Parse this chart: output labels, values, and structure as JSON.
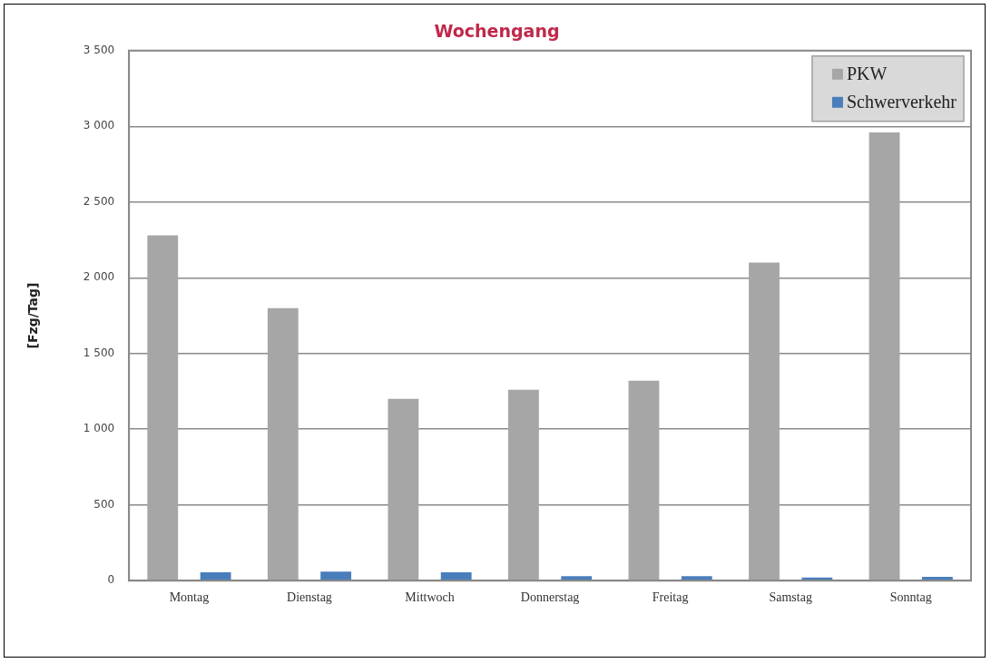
{
  "chart_data": {
    "type": "bar",
    "title": "Wochengang",
    "ylabel": "[Fzg/Tag]",
    "categories": [
      "Montag",
      "Dienstag",
      "Mittwoch",
      "Donnerstag",
      "Freitag",
      "Samstag",
      "Sonntag"
    ],
    "series": [
      {
        "name": "PKW",
        "color": "#a6a6a6",
        "values": [
          2280,
          1800,
          1200,
          1260,
          1320,
          2100,
          2960
        ]
      },
      {
        "name": "Schwerverkehr",
        "color": "#4a7ebb",
        "values": [
          55,
          60,
          55,
          30,
          30,
          20,
          25
        ]
      }
    ],
    "ylim": [
      0,
      3500
    ],
    "yticks": [
      {
        "value": 0,
        "label": "0"
      },
      {
        "value": 500,
        "label": "500"
      },
      {
        "value": 1000,
        "label": "1 000"
      },
      {
        "value": 1500,
        "label": "1 500"
      },
      {
        "value": 2000,
        "label": "2 000"
      },
      {
        "value": 2500,
        "label": "2 500"
      },
      {
        "value": 3000,
        "label": "3 000"
      },
      {
        "value": 3500,
        "label": "3 500"
      }
    ],
    "grid": "y",
    "legend": "top right"
  }
}
